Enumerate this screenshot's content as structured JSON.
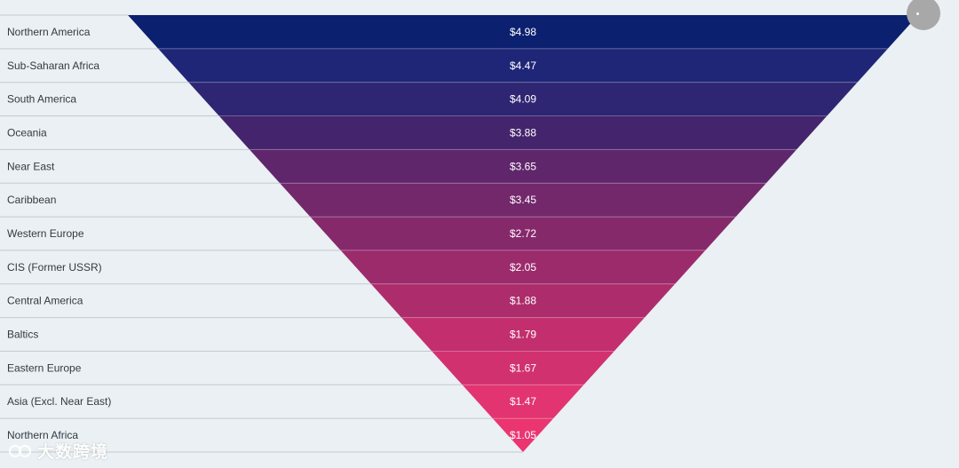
{
  "chart_data": {
    "type": "funnel",
    "categories": [
      "Northern America",
      "Sub-Saharan Africa",
      "South America",
      "Oceania",
      "Near East",
      "Caribbean",
      "Western Europe",
      "CIS (Former USSR)",
      "Central America",
      "Baltics",
      "Eastern Europe",
      "Asia (Excl. Near East)",
      "Northern Africa"
    ],
    "values": [
      4.98,
      4.47,
      4.09,
      3.88,
      3.65,
      3.45,
      2.72,
      2.05,
      1.88,
      1.79,
      1.67,
      1.47,
      1.05
    ],
    "value_labels": [
      "$4.98",
      "$4.47",
      "$4.09",
      "$3.88",
      "$3.65",
      "$3.45",
      "$2.72",
      "$2.05",
      "$1.88",
      "$1.79",
      "$1.67",
      "$1.47",
      "$1.05"
    ],
    "colors": [
      "#0c2070",
      "#1f2677",
      "#2e2672",
      "#44246c",
      "#60266c",
      "#73286c",
      "#86296b",
      "#9c2b6c",
      "#ad2d6c",
      "#c32f6e",
      "#d2316f",
      "#e23470",
      "#ea3571"
    ],
    "separator_color": "#c4cbd0",
    "background": "#eaf0f3",
    "title": "",
    "xlabel": "",
    "ylabel": "",
    "legend": "none",
    "grid": false
  },
  "watermark": {
    "text": "大数跨境",
    "icon": "logo-icon"
  },
  "corner_control": {
    "icon": "menu-handle-icon"
  }
}
